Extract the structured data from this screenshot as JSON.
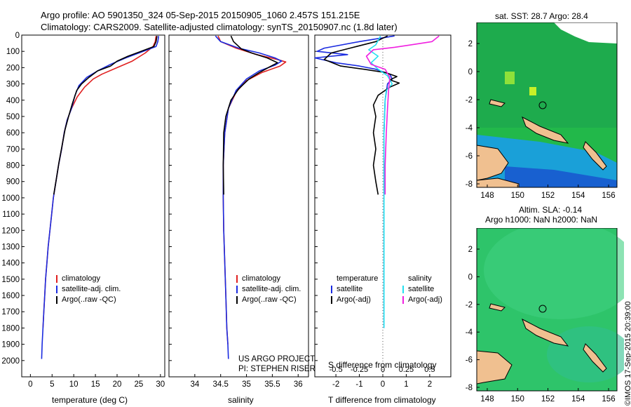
{
  "header": {
    "line1": "Argo profile: AO 5901350_324 05-Sep-2015 20150905_1060 2.457S 151.215E",
    "line2": "Climatology: CARS2009. Satellite-adjusted climatology: synTS_20150907.nc (1.8d later)"
  },
  "colors": {
    "climatology": "#e02020",
    "satellite": "#1a2be0",
    "argo": "#000000",
    "sat_cyan": "#22e0f0",
    "argo_mag": "#f020e0"
  },
  "chart_data": [
    {
      "type": "line",
      "id": "temperature",
      "xlabel": "temperature (deg C)",
      "xlim": [
        -2,
        31
      ],
      "ylim": [
        2100,
        0
      ],
      "xticks": [
        0,
        5,
        10,
        15,
        20,
        25,
        30
      ],
      "yticks": [
        0,
        100,
        200,
        300,
        400,
        500,
        600,
        700,
        800,
        900,
        1000,
        1100,
        1200,
        1300,
        1400,
        1500,
        1600,
        1700,
        1800,
        1900,
        2000
      ],
      "legend": [
        "climatology",
        "satellite-adj. clim.",
        "Argo(..raw -QC)"
      ],
      "series": [
        {
          "name": "climatology",
          "color": "#e02020",
          "points": [
            [
              29.0,
              5
            ],
            [
              28.8,
              40
            ],
            [
              28.3,
              70
            ],
            [
              26.5,
              110
            ],
            [
              23.5,
              160
            ],
            [
              20.0,
              200
            ],
            [
              16.5,
              240
            ],
            [
              14.5,
              270
            ],
            [
              12.5,
              320
            ],
            [
              10.8,
              380
            ],
            [
              9.5,
              450
            ],
            [
              8.5,
              520
            ],
            [
              7.8,
              600
            ],
            [
              7.2,
              700
            ],
            [
              6.5,
              800
            ],
            [
              5.9,
              900
            ],
            [
              5.3,
              1000
            ],
            [
              4.9,
              1100
            ],
            [
              4.5,
              1200
            ],
            [
              4.1,
              1300
            ],
            [
              3.8,
              1400
            ],
            [
              3.5,
              1500
            ],
            [
              3.3,
              1600
            ],
            [
              3.1,
              1700
            ],
            [
              2.9,
              1800
            ]
          ]
        },
        {
          "name": "satellite-adj. clim.",
          "color": "#1a2be0",
          "points": [
            [
              29.6,
              5
            ],
            [
              29.4,
              40
            ],
            [
              29.0,
              70
            ],
            [
              26.0,
              100
            ],
            [
              22.0,
              140
            ],
            [
              18.5,
              180
            ],
            [
              15.5,
              220
            ],
            [
              13.0,
              260
            ],
            [
              11.2,
              310
            ],
            [
              10.3,
              370
            ],
            [
              9.5,
              450
            ],
            [
              8.5,
              520
            ],
            [
              7.8,
              600
            ],
            [
              7.2,
              700
            ],
            [
              6.5,
              800
            ],
            [
              5.9,
              900
            ],
            [
              5.3,
              1000
            ],
            [
              4.9,
              1100
            ],
            [
              4.5,
              1200
            ],
            [
              4.1,
              1300
            ],
            [
              3.8,
              1400
            ],
            [
              3.5,
              1500
            ],
            [
              3.3,
              1600
            ],
            [
              3.1,
              1700
            ],
            [
              2.9,
              1800
            ],
            [
              2.7,
              1900
            ],
            [
              2.6,
              1990
            ]
          ]
        },
        {
          "name": "Argo(..raw -QC)",
          "color": "#000000",
          "points": [
            [
              29.2,
              5
            ],
            [
              29.0,
              40
            ],
            [
              28.5,
              70
            ],
            [
              25.5,
              100
            ],
            [
              22.5,
              130
            ],
            [
              20.0,
              160
            ],
            [
              18.5,
              190
            ],
            [
              15.5,
              220
            ],
            [
              13.5,
              260
            ],
            [
              11.8,
              300
            ],
            [
              10.7,
              340
            ],
            [
              9.7,
              420
            ],
            [
              8.8,
              500
            ],
            [
              8.0,
              580
            ],
            [
              7.3,
              680
            ],
            [
              6.6,
              780
            ],
            [
              6.0,
              880
            ],
            [
              5.4,
              980
            ]
          ]
        }
      ]
    },
    {
      "type": "line",
      "id": "salinity",
      "xlabel": "salinity",
      "xlim": [
        33.5,
        36.2
      ],
      "ylim": [
        2100,
        0
      ],
      "xticks": [
        34,
        34.5,
        35,
        35.5,
        36
      ],
      "legend": [
        "climatology",
        "satellite-adj. clim.",
        "Argo(..raw -QC)"
      ],
      "series": [
        {
          "name": "climatology",
          "color": "#e02020",
          "points": [
            [
              34.45,
              5
            ],
            [
              34.5,
              40
            ],
            [
              34.8,
              80
            ],
            [
              35.2,
              120
            ],
            [
              35.6,
              150
            ],
            [
              35.76,
              165
            ],
            [
              35.65,
              190
            ],
            [
              35.3,
              230
            ],
            [
              35.0,
              280
            ],
            [
              34.8,
              350
            ],
            [
              34.65,
              450
            ],
            [
              34.58,
              600
            ],
            [
              34.55,
              800
            ],
            [
              34.55,
              1000
            ],
            [
              34.56,
              1200
            ],
            [
              34.58,
              1400
            ],
            [
              34.6,
              1600
            ],
            [
              34.62,
              1800
            ],
            [
              34.64,
              1900
            ]
          ]
        },
        {
          "name": "satellite-adj. clim.",
          "color": "#1a2be0",
          "points": [
            [
              34.4,
              5
            ],
            [
              34.5,
              40
            ],
            [
              34.85,
              80
            ],
            [
              35.25,
              110
            ],
            [
              35.55,
              140
            ],
            [
              35.68,
              160
            ],
            [
              35.55,
              185
            ],
            [
              35.25,
              220
            ],
            [
              35.0,
              270
            ],
            [
              34.8,
              340
            ],
            [
              34.65,
              450
            ],
            [
              34.58,
              600
            ],
            [
              34.55,
              800
            ],
            [
              34.55,
              1000
            ],
            [
              34.56,
              1200
            ],
            [
              34.58,
              1400
            ],
            [
              34.6,
              1600
            ],
            [
              34.62,
              1800
            ],
            [
              34.64,
              1900
            ],
            [
              34.65,
              1990
            ]
          ]
        },
        {
          "name": "Argo(..raw -QC)",
          "color": "#000000",
          "points": [
            [
              34.7,
              5
            ],
            [
              34.75,
              40
            ],
            [
              34.85,
              70
            ],
            [
              34.9,
              85
            ],
            [
              35.1,
              110
            ],
            [
              35.4,
              140
            ],
            [
              35.6,
              170
            ],
            [
              35.45,
              195
            ],
            [
              35.25,
              230
            ],
            [
              35.05,
              270
            ],
            [
              34.85,
              330
            ],
            [
              34.7,
              400
            ],
            [
              34.6,
              500
            ],
            [
              34.56,
              600
            ],
            [
              34.55,
              800
            ],
            [
              34.56,
              980
            ]
          ]
        }
      ]
    },
    {
      "type": "line",
      "id": "difference",
      "xlabel": "T difference from climatology",
      "xlabel_top": "S difference from climatology",
      "xlim": [
        -2.9,
        2.9
      ],
      "ylim": [
        2100,
        0
      ],
      "xticks": [
        -2,
        -1,
        0,
        1,
        2
      ],
      "xticks_top": [
        "-0.5",
        "-0.25",
        "0",
        "0.25",
        "0.5"
      ],
      "legend_left_title": "temperature",
      "legend_left": [
        "satellite",
        "Argo(-adj)"
      ],
      "legend_right_title": "salinity",
      "legend_right": [
        "satellite",
        "Argo(-adj)"
      ],
      "series": [
        {
          "name": "temperature satellite",
          "color": "#1a2be0",
          "points": [
            [
              0.5,
              5
            ],
            [
              -1.0,
              40
            ],
            [
              -2.5,
              80
            ],
            [
              -2.8,
              100
            ],
            [
              -1.5,
              120
            ],
            [
              -2.9,
              140
            ],
            [
              -2.0,
              170
            ],
            [
              -1.0,
              190
            ],
            [
              -0.3,
              210
            ],
            [
              0.3,
              240
            ],
            [
              0.4,
              270
            ],
            [
              0.2,
              300
            ],
            [
              0.1,
              400
            ],
            [
              0.05,
              600
            ],
            [
              0.05,
              800
            ],
            [
              0.05,
              1000
            ],
            [
              0.05,
              1200
            ],
            [
              0.05,
              1400
            ],
            [
              0.05,
              1600
            ],
            [
              0.05,
              1800
            ]
          ]
        },
        {
          "name": "temperature Argo(-adj)",
          "color": "#000000",
          "points": [
            [
              0.2,
              5
            ],
            [
              -0.3,
              40
            ],
            [
              -1.4,
              80
            ],
            [
              -2.2,
              110
            ],
            [
              -2.5,
              150
            ],
            [
              -1.8,
              190
            ],
            [
              -0.8,
              210
            ],
            [
              0.1,
              230
            ],
            [
              0.6,
              255
            ],
            [
              0.3,
              275
            ],
            [
              0.7,
              295
            ],
            [
              0.3,
              320
            ],
            [
              -0.2,
              370
            ],
            [
              -0.4,
              430
            ],
            [
              -0.3,
              500
            ],
            [
              -0.4,
              600
            ],
            [
              -0.3,
              700
            ],
            [
              -0.4,
              800
            ],
            [
              -0.3,
              900
            ],
            [
              -0.2,
              980
            ]
          ]
        },
        {
          "name": "salinity satellite",
          "color": "#22e0f0",
          "points": [
            [
              -0.1,
              5
            ],
            [
              -0.3,
              60
            ],
            [
              -0.6,
              90
            ],
            [
              -0.2,
              130
            ],
            [
              -0.5,
              170
            ],
            [
              -0.2,
              210
            ],
            [
              0.2,
              250
            ],
            [
              0.4,
              300
            ],
            [
              0.15,
              340
            ],
            [
              0.1,
              400
            ],
            [
              0.05,
              600
            ],
            [
              0.05,
              800
            ],
            [
              0.05,
              1000
            ],
            [
              0.05,
              1200
            ],
            [
              0.05,
              1400
            ],
            [
              0.05,
              1600
            ],
            [
              0.05,
              1800
            ]
          ]
        },
        {
          "name": "salinity Argo(-adj)",
          "color": "#f020e0",
          "points": [
            [
              2.4,
              5
            ],
            [
              2.1,
              40
            ],
            [
              1.2,
              60
            ],
            [
              0.5,
              75
            ],
            [
              -0.4,
              90
            ],
            [
              -0.7,
              130
            ],
            [
              -0.5,
              180
            ],
            [
              0.1,
              210
            ],
            [
              0.3,
              260
            ],
            [
              0.25,
              330
            ],
            [
              0.2,
              450
            ],
            [
              0.15,
              600
            ],
            [
              0.1,
              800
            ],
            [
              0.1,
              980
            ]
          ]
        }
      ]
    }
  ],
  "credit": {
    "line1": "US ARGO PROJECT",
    "line2": "PI: STEPHEN RISER"
  },
  "map_top": {
    "title": "sat. SST: 28.7 Argo: 28.4",
    "xticks": [
      "148",
      "150",
      "152",
      "154",
      "156"
    ],
    "yticks": [
      "2",
      "0",
      "-2",
      "-4",
      "-6",
      "-8"
    ]
  },
  "map_bottom": {
    "title_line1": "Altim. SLA: -0.14",
    "title_line2": "Argo h1000: NaN h2000: NaN",
    "xticks": [
      "148",
      "150",
      "152",
      "154",
      "156"
    ],
    "yticks": [
      "2",
      "0",
      "-2",
      "-4",
      "-6",
      "-8"
    ]
  },
  "footer": {
    "stamp": "©IMOS 17-Sep-2015 20:39:00"
  }
}
